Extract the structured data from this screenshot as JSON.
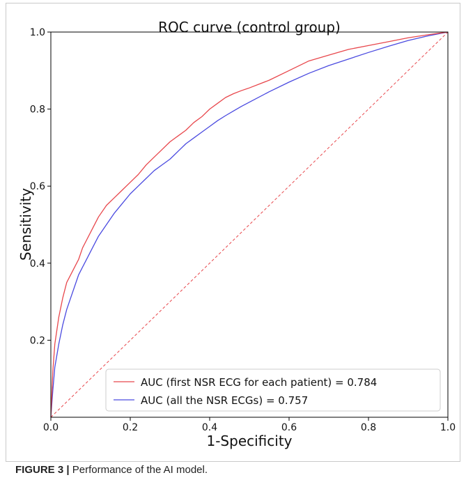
{
  "figure": {
    "caption_label": "FIGURE 3",
    "caption_separator": " | ",
    "caption_text": "Performance of the AI model."
  },
  "chart_data": {
    "type": "line",
    "title": "ROC curve (control group)",
    "xlabel": "1-Specificity",
    "ylabel": "Sensitivity",
    "xlim": [
      0.0,
      1.0
    ],
    "ylim": [
      0.0,
      1.0
    ],
    "xticks": [
      "0.0",
      "0.2",
      "0.4",
      "0.6",
      "0.8",
      "1.0"
    ],
    "yticks": [
      "0.2",
      "0.4",
      "0.6",
      "0.8",
      "1.0"
    ],
    "grid": false,
    "legend_position": "lower-right",
    "series": [
      {
        "name": "AUC (first NSR ECG for each patient) = 0.784",
        "color": "#e8474c",
        "x": [
          0.0,
          0.005,
          0.01,
          0.02,
          0.03,
          0.04,
          0.05,
          0.06,
          0.07,
          0.08,
          0.09,
          0.1,
          0.12,
          0.14,
          0.16,
          0.18,
          0.2,
          0.22,
          0.24,
          0.26,
          0.28,
          0.3,
          0.32,
          0.34,
          0.36,
          0.38,
          0.4,
          0.42,
          0.44,
          0.46,
          0.48,
          0.5,
          0.55,
          0.6,
          0.65,
          0.7,
          0.75,
          0.8,
          0.85,
          0.9,
          0.95,
          1.0
        ],
        "y": [
          0.0,
          0.12,
          0.19,
          0.26,
          0.31,
          0.35,
          0.37,
          0.39,
          0.41,
          0.44,
          0.46,
          0.48,
          0.52,
          0.55,
          0.57,
          0.59,
          0.61,
          0.63,
          0.655,
          0.675,
          0.695,
          0.715,
          0.73,
          0.745,
          0.765,
          0.78,
          0.8,
          0.815,
          0.83,
          0.84,
          0.848,
          0.855,
          0.875,
          0.9,
          0.925,
          0.94,
          0.955,
          0.965,
          0.975,
          0.985,
          0.993,
          1.0
        ]
      },
      {
        "name": "AUC (all the NSR ECGs) = 0.757",
        "color": "#4a4ae0",
        "x": [
          0.0,
          0.005,
          0.01,
          0.02,
          0.03,
          0.04,
          0.05,
          0.06,
          0.07,
          0.08,
          0.09,
          0.1,
          0.12,
          0.14,
          0.16,
          0.18,
          0.2,
          0.22,
          0.24,
          0.26,
          0.28,
          0.3,
          0.32,
          0.34,
          0.36,
          0.38,
          0.4,
          0.42,
          0.44,
          0.46,
          0.48,
          0.5,
          0.55,
          0.6,
          0.65,
          0.7,
          0.75,
          0.8,
          0.85,
          0.9,
          0.95,
          1.0
        ],
        "y": [
          0.0,
          0.07,
          0.13,
          0.19,
          0.24,
          0.28,
          0.31,
          0.34,
          0.37,
          0.39,
          0.41,
          0.43,
          0.47,
          0.5,
          0.53,
          0.555,
          0.58,
          0.6,
          0.62,
          0.64,
          0.655,
          0.67,
          0.69,
          0.71,
          0.725,
          0.74,
          0.755,
          0.77,
          0.783,
          0.795,
          0.807,
          0.818,
          0.845,
          0.87,
          0.893,
          0.913,
          0.93,
          0.947,
          0.963,
          0.978,
          0.99,
          1.0
        ]
      }
    ],
    "reference": {
      "color": "#e8474c",
      "x": [
        0.0,
        1.0
      ],
      "y": [
        0.0,
        1.0
      ]
    }
  }
}
